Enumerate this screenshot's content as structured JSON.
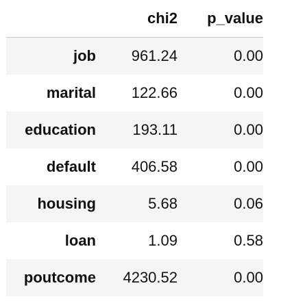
{
  "table": {
    "columns": [
      "chi2",
      "p_value"
    ],
    "rows": [
      {
        "index": "job",
        "chi2": "961.24",
        "p_value": "0.00"
      },
      {
        "index": "marital",
        "chi2": "122.66",
        "p_value": "0.00"
      },
      {
        "index": "education",
        "chi2": "193.11",
        "p_value": "0.00"
      },
      {
        "index": "default",
        "chi2": "406.58",
        "p_value": "0.00"
      },
      {
        "index": "housing",
        "chi2": "5.68",
        "p_value": "0.06"
      },
      {
        "index": "loan",
        "chi2": "1.09",
        "p_value": "0.58"
      },
      {
        "index": "poutcome",
        "chi2": "4230.52",
        "p_value": "0.00"
      }
    ]
  },
  "colors": {
    "stripe": "#f5f5f5",
    "header_rule": "#c9c9c9",
    "text": "#111111"
  }
}
